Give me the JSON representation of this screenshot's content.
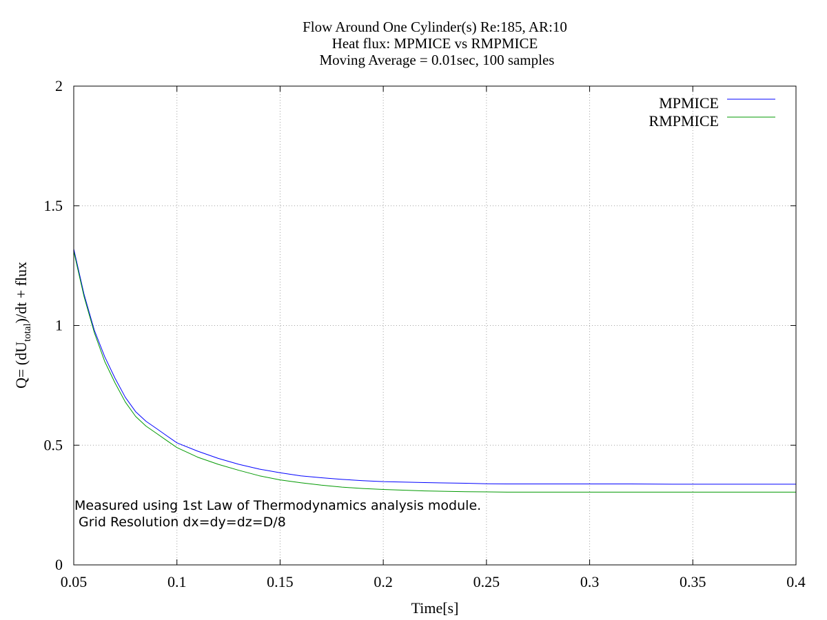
{
  "chart_data": {
    "type": "line",
    "title_lines": [
      "Flow Around One Cylinder(s) Re:185, AR:10",
      "Heat flux: MPMICE vs RMPMICE",
      "Moving Average = 0.01sec, 100 samples"
    ],
    "xlabel": "Time[s]",
    "ylabel": {
      "prefix": "Q= (dU",
      "subscript": "total",
      "suffix": ")/dt + flux"
    },
    "xlim": [
      0.05,
      0.4
    ],
    "ylim": [
      0,
      2
    ],
    "x_ticks": [
      {
        "value": 0.05,
        "label": "0.05"
      },
      {
        "value": 0.1,
        "label": "0.1"
      },
      {
        "value": 0.15,
        "label": "0.15"
      },
      {
        "value": 0.2,
        "label": "0.2"
      },
      {
        "value": 0.25,
        "label": "0.25"
      },
      {
        "value": 0.3,
        "label": "0.3"
      },
      {
        "value": 0.35,
        "label": "0.35"
      },
      {
        "value": 0.4,
        "label": "0.4"
      }
    ],
    "y_ticks": [
      {
        "value": 0,
        "label": "0"
      },
      {
        "value": 0.5,
        "label": "0.5"
      },
      {
        "value": 1,
        "label": "1"
      },
      {
        "value": 1.5,
        "label": "1.5"
      },
      {
        "value": 2,
        "label": "2"
      }
    ],
    "grid": true,
    "legend_position": "top-right",
    "annotation_lines": [
      "Measured using 1st Law of Thermodynamics analysis module.",
      " Grid Resolution dx=dy=dz=D/8"
    ],
    "series": [
      {
        "name": "MPMICE",
        "color": "#0000ff",
        "x": [
          0.05,
          0.055,
          0.06,
          0.065,
          0.07,
          0.075,
          0.08,
          0.085,
          0.09,
          0.095,
          0.1,
          0.11,
          0.12,
          0.13,
          0.14,
          0.15,
          0.16,
          0.17,
          0.18,
          0.19,
          0.2,
          0.22,
          0.24,
          0.25,
          0.26,
          0.28,
          0.3,
          0.32,
          0.34,
          0.35,
          0.36,
          0.38,
          0.4
        ],
        "y": [
          1.32,
          1.13,
          0.98,
          0.87,
          0.78,
          0.7,
          0.64,
          0.6,
          0.57,
          0.54,
          0.51,
          0.475,
          0.445,
          0.42,
          0.4,
          0.385,
          0.372,
          0.364,
          0.357,
          0.352,
          0.348,
          0.344,
          0.341,
          0.339,
          0.338,
          0.338,
          0.338,
          0.338,
          0.337,
          0.337,
          0.337,
          0.337,
          0.337
        ]
      },
      {
        "name": "RMPMICE",
        "color": "#009900",
        "x": [
          0.05,
          0.055,
          0.06,
          0.065,
          0.07,
          0.075,
          0.08,
          0.085,
          0.09,
          0.095,
          0.1,
          0.11,
          0.12,
          0.13,
          0.14,
          0.15,
          0.16,
          0.17,
          0.18,
          0.19,
          0.2,
          0.22,
          0.24,
          0.25,
          0.26,
          0.28,
          0.3,
          0.32,
          0.34,
          0.35,
          0.36,
          0.38,
          0.4
        ],
        "y": [
          1.31,
          1.12,
          0.97,
          0.85,
          0.76,
          0.68,
          0.62,
          0.58,
          0.55,
          0.52,
          0.49,
          0.45,
          0.42,
          0.395,
          0.372,
          0.355,
          0.343,
          0.333,
          0.325,
          0.319,
          0.315,
          0.309,
          0.306,
          0.305,
          0.304,
          0.304,
          0.304,
          0.304,
          0.304,
          0.304,
          0.304,
          0.304,
          0.304
        ]
      }
    ]
  }
}
